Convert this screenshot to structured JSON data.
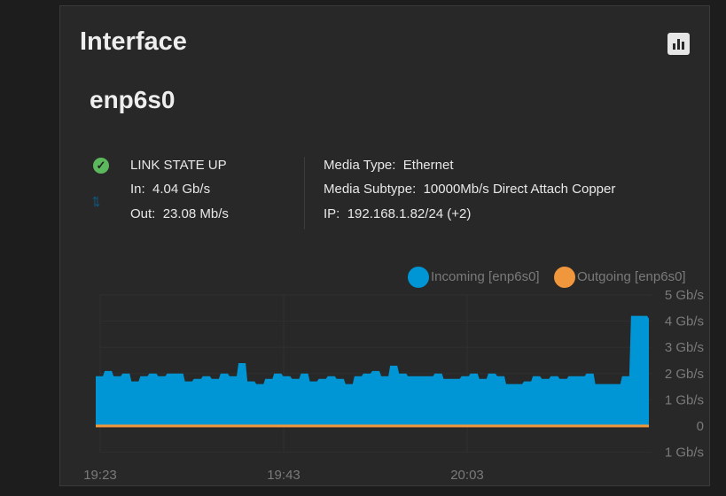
{
  "card": {
    "title": "Interface",
    "chart_button_icon": "bar-chart-icon"
  },
  "interface": {
    "name": "enp6s0",
    "link_state": "LINK STATE UP",
    "in_label": "In:",
    "in_value": "4.04 Gb/s",
    "out_label": "Out:",
    "out_value": "23.08 Mb/s",
    "media_type_label": "Media Type:",
    "media_type": "Ethernet",
    "media_subtype_label": "Media Subtype:",
    "media_subtype": "10000Mb/s Direct Attach Copper",
    "ip_label": "IP:",
    "ip": "192.168.1.82/24 (+2)"
  },
  "colors": {
    "incoming": "#0095d5",
    "outgoing": "#f0963c",
    "link_up": "#5cb85c"
  },
  "chart_data": {
    "type": "area",
    "legend_position": "top-right",
    "series": [
      {
        "name": "Incoming [enp6s0]",
        "color": "#0095d5",
        "values": [
          1.9,
          2.1,
          1.9,
          2.0,
          1.7,
          1.9,
          2.0,
          1.9,
          2.0,
          2.0,
          1.7,
          1.8,
          1.9,
          1.8,
          2.0,
          1.9,
          2.4,
          1.7,
          1.6,
          1.8,
          2.0,
          1.9,
          1.8,
          2.0,
          1.7,
          1.8,
          1.9,
          1.8,
          1.6,
          1.9,
          2.0,
          2.1,
          1.9,
          2.3,
          2.0,
          1.9,
          1.9,
          1.9,
          2.0,
          1.8,
          1.8,
          1.9,
          2.0,
          1.8,
          2.0,
          1.9,
          1.6,
          1.6,
          1.7,
          1.9,
          1.8,
          1.9,
          1.8,
          1.9,
          1.9,
          2.0,
          1.6,
          1.6,
          1.6,
          1.9,
          4.2,
          4.2,
          4.1
        ]
      },
      {
        "name": "Outgoing [enp6s0]",
        "color": "#f0963c",
        "values": [
          0.02,
          0.02,
          0.02,
          0.02,
          0.02,
          0.02,
          0.02,
          0.02,
          0.02,
          0.02,
          0.02,
          0.02,
          0.02,
          0.02,
          0.02,
          0.02,
          0.02,
          0.02,
          0.02,
          0.02,
          0.02,
          0.02,
          0.02,
          0.02,
          0.02,
          0.02,
          0.02,
          0.02,
          0.02,
          0.02,
          0.02,
          0.02,
          0.02,
          0.02,
          0.02,
          0.02,
          0.02,
          0.02,
          0.02,
          0.02,
          0.02,
          0.02,
          0.02,
          0.02,
          0.02,
          0.02,
          0.02,
          0.02,
          0.02,
          0.02,
          0.02,
          0.02,
          0.02,
          0.02,
          0.02,
          0.02,
          0.02,
          0.02,
          0.02,
          0.02,
          0.02,
          0.02,
          0.02
        ]
      }
    ],
    "x_start": "19:23",
    "x_step_minutes": 1,
    "x_ticks": [
      "19:23",
      "19:43",
      "20:03"
    ],
    "y_ticks": [
      {
        "value": 5,
        "label": "5 Gb/s"
      },
      {
        "value": 4,
        "label": "4 Gb/s"
      },
      {
        "value": 3,
        "label": "3 Gb/s"
      },
      {
        "value": 2,
        "label": "2 Gb/s"
      },
      {
        "value": 1,
        "label": "1 Gb/s"
      },
      {
        "value": 0,
        "label": "0"
      },
      {
        "value": -1,
        "label": "1 Gb/s"
      }
    ],
    "ylim": [
      -1,
      5
    ],
    "grid": true
  }
}
